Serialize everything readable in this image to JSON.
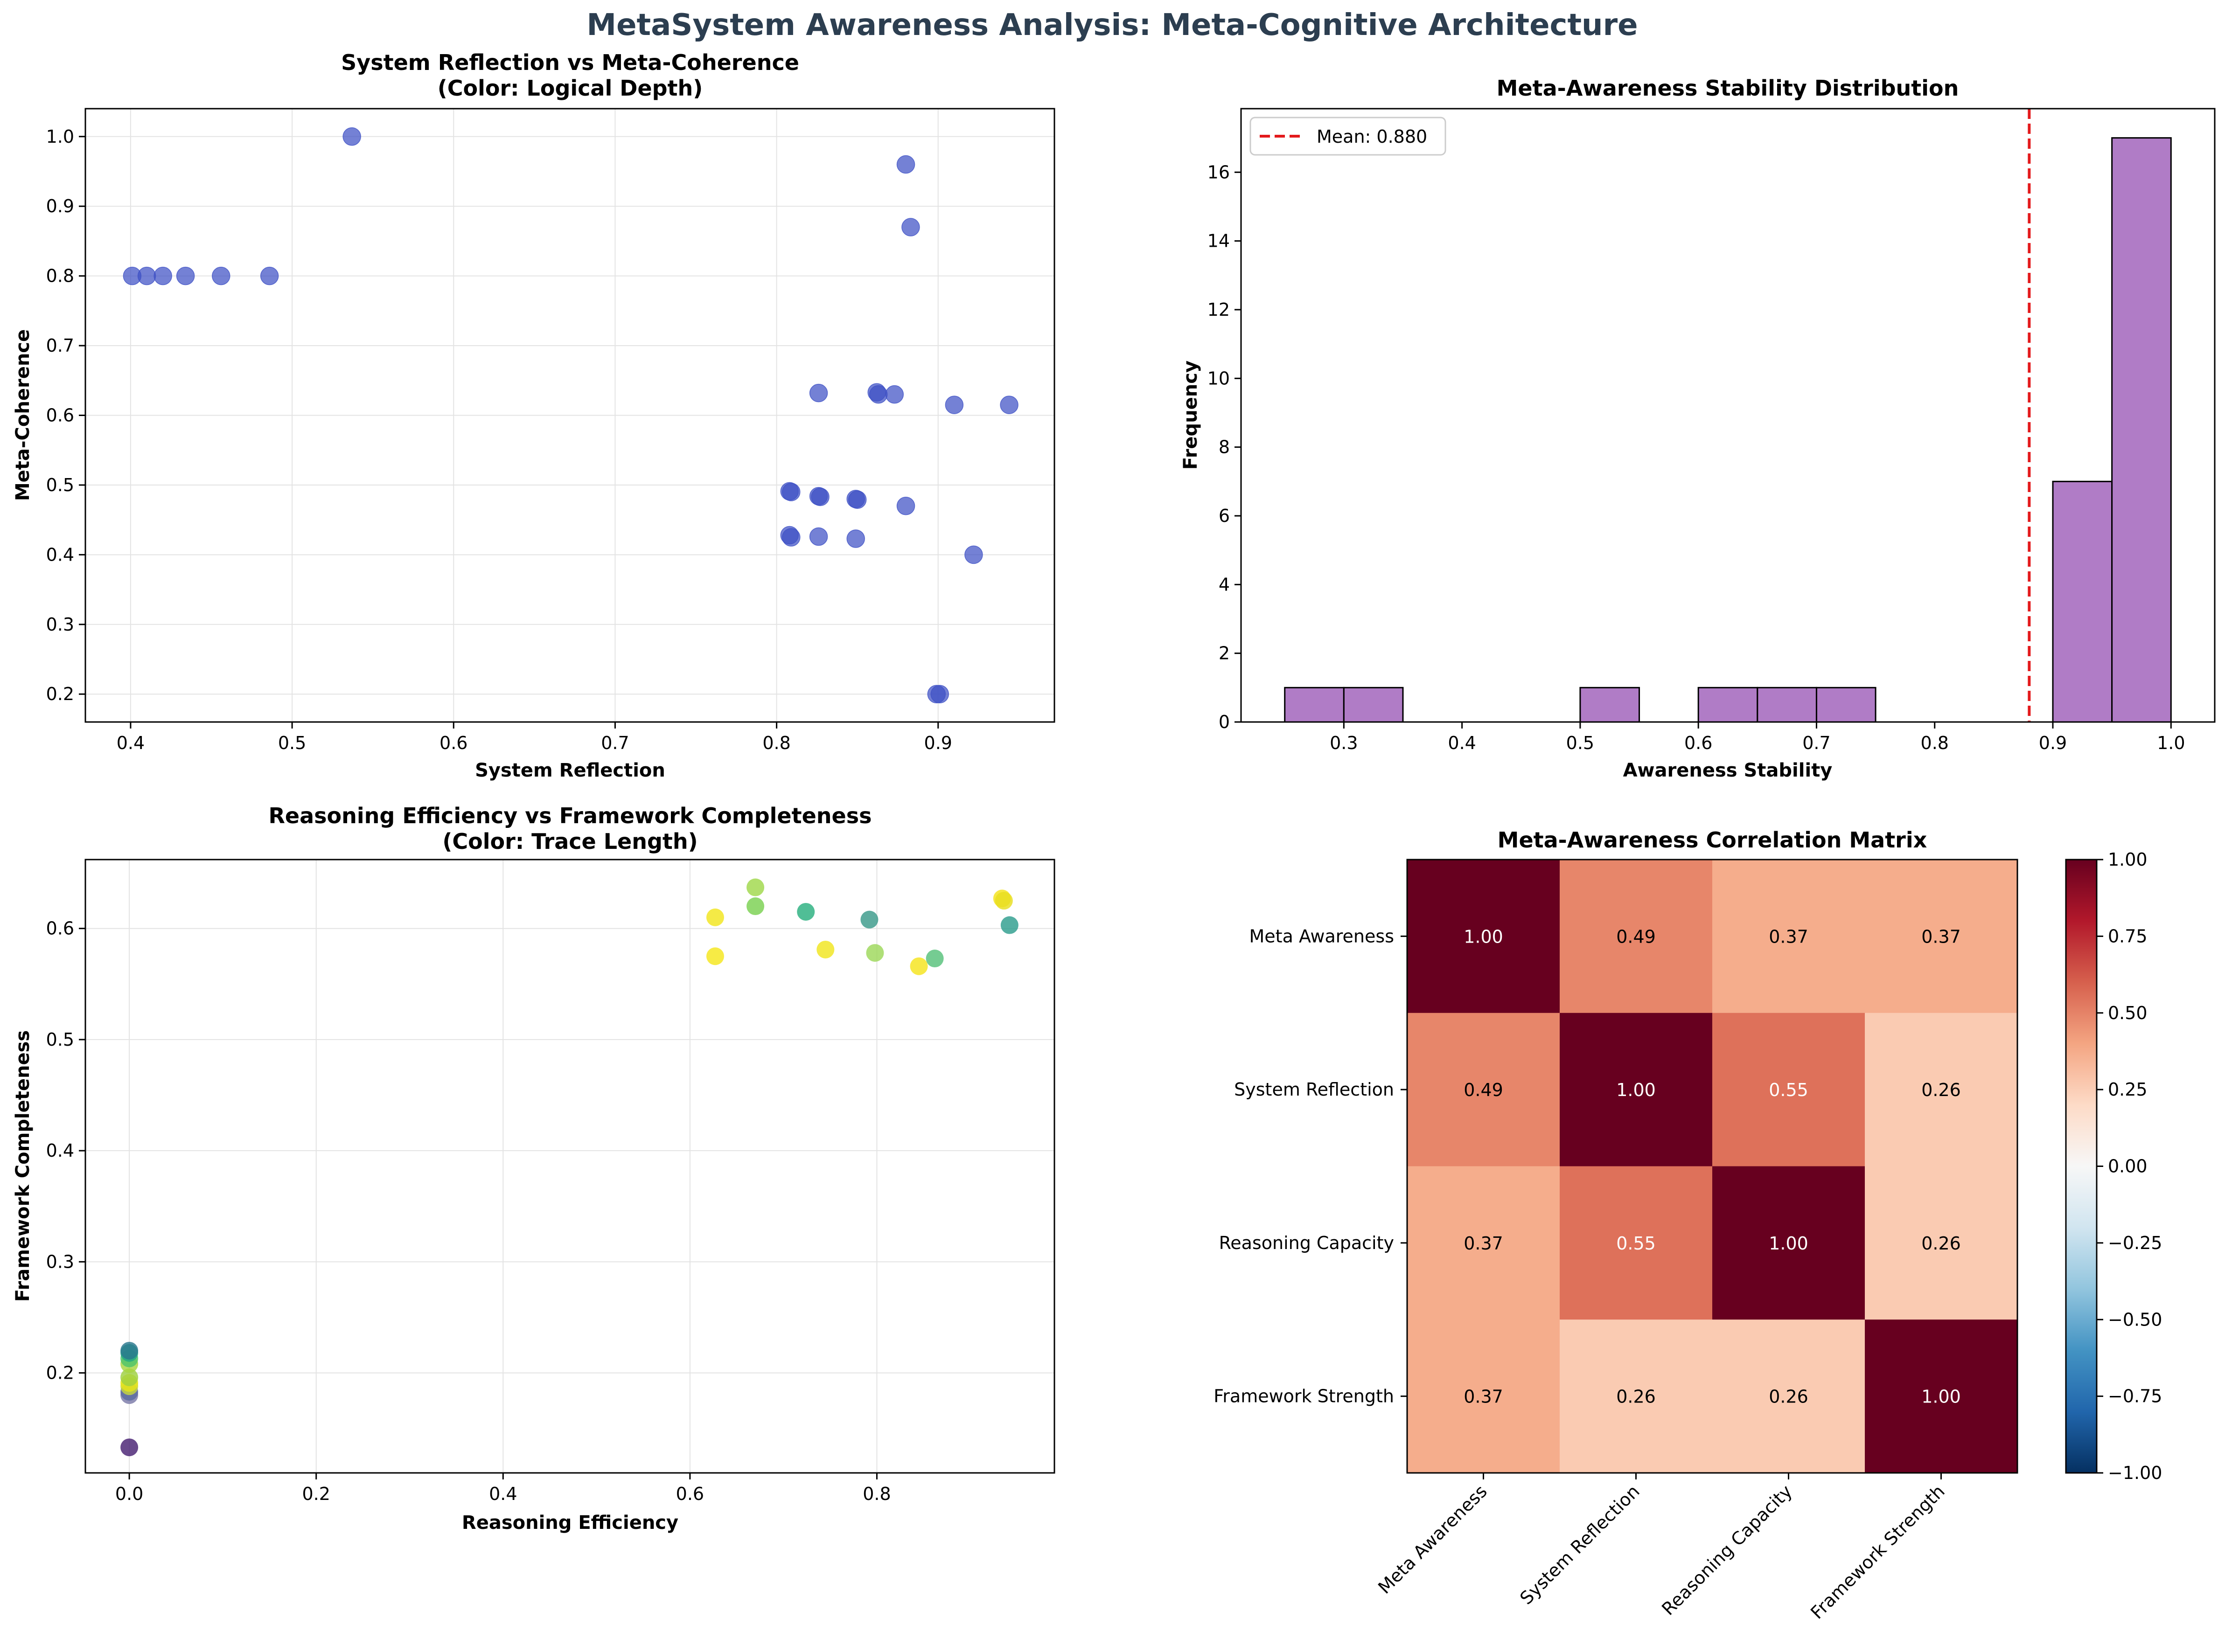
{
  "figure": {
    "suptitle": "MetaSystem Awareness Analysis: Meta-Cognitive Architecture",
    "suptitle_color": "#2c3e50"
  },
  "chart_data": [
    {
      "id": "scatter1",
      "type": "scatter",
      "title_line1": "System Reflection vs Meta-Coherence",
      "title_line2": "(Color: Logical Depth)",
      "xlabel": "System Reflection",
      "ylabel": "Meta-Coherence",
      "xlim": [
        0.372,
        0.972
      ],
      "ylim": [
        0.16,
        1.04
      ],
      "xticks": [
        0.4,
        0.5,
        0.6,
        0.7,
        0.8,
        0.9
      ],
      "yticks": [
        0.2,
        0.3,
        0.4,
        0.5,
        0.6,
        0.7,
        0.8,
        0.9,
        1.0
      ],
      "grid": true,
      "point_color": "#3f51c5",
      "points": [
        {
          "x": 0.401,
          "y": 0.8
        },
        {
          "x": 0.41,
          "y": 0.8
        },
        {
          "x": 0.42,
          "y": 0.8
        },
        {
          "x": 0.434,
          "y": 0.8
        },
        {
          "x": 0.456,
          "y": 0.8
        },
        {
          "x": 0.486,
          "y": 0.8
        },
        {
          "x": 0.537,
          "y": 1.0
        },
        {
          "x": 0.88,
          "y": 0.96
        },
        {
          "x": 0.883,
          "y": 0.87
        },
        {
          "x": 0.826,
          "y": 0.632
        },
        {
          "x": 0.862,
          "y": 0.633
        },
        {
          "x": 0.863,
          "y": 0.63
        },
        {
          "x": 0.873,
          "y": 0.63
        },
        {
          "x": 0.91,
          "y": 0.615
        },
        {
          "x": 0.944,
          "y": 0.615
        },
        {
          "x": 0.808,
          "y": 0.491
        },
        {
          "x": 0.809,
          "y": 0.49
        },
        {
          "x": 0.826,
          "y": 0.484
        },
        {
          "x": 0.827,
          "y": 0.483
        },
        {
          "x": 0.849,
          "y": 0.48
        },
        {
          "x": 0.85,
          "y": 0.479
        },
        {
          "x": 0.88,
          "y": 0.47
        },
        {
          "x": 0.808,
          "y": 0.428
        },
        {
          "x": 0.809,
          "y": 0.425
        },
        {
          "x": 0.826,
          "y": 0.426
        },
        {
          "x": 0.849,
          "y": 0.423
        },
        {
          "x": 0.922,
          "y": 0.4
        },
        {
          "x": 0.899,
          "y": 0.2
        },
        {
          "x": 0.901,
          "y": 0.2
        }
      ]
    },
    {
      "id": "hist1",
      "type": "bar",
      "title": "Meta-Awareness Stability Distribution",
      "xlabel": "Awareness Stability",
      "ylabel": "Frequency",
      "xlim": [
        0.213,
        1.037
      ],
      "ylim": [
        0,
        17.85
      ],
      "xticks": [
        0.3,
        0.4,
        0.5,
        0.6,
        0.7,
        0.8,
        0.9,
        1.0
      ],
      "yticks": [
        0,
        2,
        4,
        6,
        8,
        10,
        12,
        14,
        16
      ],
      "bar_color": "#b07cc6",
      "bin_width": 0.05,
      "bins": [
        {
          "start": 0.25,
          "count": 1
        },
        {
          "start": 0.3,
          "count": 1
        },
        {
          "start": 0.5,
          "count": 1
        },
        {
          "start": 0.6,
          "count": 1
        },
        {
          "start": 0.65,
          "count": 1
        },
        {
          "start": 0.7,
          "count": 1
        },
        {
          "start": 0.9,
          "count": 7
        },
        {
          "start": 0.95,
          "count": 17
        }
      ],
      "mean": 0.88,
      "mean_color": "#e31a1c",
      "legend_label": "Mean: 0.880",
      "legend_position": "top-left"
    },
    {
      "id": "scatter2",
      "type": "scatter",
      "title_line1": "Reasoning Efficiency vs Framework Completeness",
      "title_line2": "(Color: Trace Length)",
      "xlabel": "Reasoning Efficiency",
      "ylabel": "Framework Completeness",
      "xlim": [
        -0.047,
        0.99
      ],
      "ylim": [
        0.11,
        0.662
      ],
      "xticks": [
        0.0,
        0.2,
        0.4,
        0.6,
        0.8
      ],
      "yticks": [
        0.2,
        0.3,
        0.4,
        0.5,
        0.6
      ],
      "grid": true,
      "points": [
        {
          "x": 0.0,
          "y": 0.133,
          "c": "#482173"
        },
        {
          "x": 0.0,
          "y": 0.18,
          "c": "#7b7aa8"
        },
        {
          "x": 0.0,
          "y": 0.183,
          "c": "#5c6ba0"
        },
        {
          "x": 0.0,
          "y": 0.188,
          "c": "#c8d83a"
        },
        {
          "x": 0.0,
          "y": 0.191,
          "c": "#e5e419"
        },
        {
          "x": 0.0,
          "y": 0.196,
          "c": "#9fd142"
        },
        {
          "x": 0.0,
          "y": 0.208,
          "c": "#a7d63f"
        },
        {
          "x": 0.0,
          "y": 0.213,
          "c": "#4dc36b"
        },
        {
          "x": 0.0,
          "y": 0.218,
          "c": "#22a884"
        },
        {
          "x": 0.0,
          "y": 0.22,
          "c": "#2a788e"
        },
        {
          "x": 0.627,
          "y": 0.61,
          "c": "#f2e51d"
        },
        {
          "x": 0.627,
          "y": 0.575,
          "c": "#f5e61c"
        },
        {
          "x": 0.67,
          "y": 0.637,
          "c": "#a0d84a"
        },
        {
          "x": 0.67,
          "y": 0.62,
          "c": "#7ad151"
        },
        {
          "x": 0.724,
          "y": 0.615,
          "c": "#2ab07f"
        },
        {
          "x": 0.745,
          "y": 0.581,
          "c": "#f0e51e"
        },
        {
          "x": 0.792,
          "y": 0.608,
          "c": "#3a9a8a"
        },
        {
          "x": 0.798,
          "y": 0.578,
          "c": "#9ed85a"
        },
        {
          "x": 0.845,
          "y": 0.566,
          "c": "#f5e41c"
        },
        {
          "x": 0.862,
          "y": 0.573,
          "c": "#57c17a"
        },
        {
          "x": 0.934,
          "y": 0.627,
          "c": "#f4e31c"
        },
        {
          "x": 0.936,
          "y": 0.625,
          "c": "#e8de20"
        },
        {
          "x": 0.942,
          "y": 0.603,
          "c": "#2e9d8d"
        }
      ]
    },
    {
      "id": "heatmap1",
      "type": "heatmap",
      "title": "Meta-Awareness Correlation Matrix",
      "labels": [
        "Meta Awareness",
        "System Reflection",
        "Reasoning Capacity",
        "Framework Strength"
      ],
      "matrix": [
        [
          1.0,
          0.49,
          0.37,
          0.37
        ],
        [
          0.49,
          1.0,
          0.55,
          0.26
        ],
        [
          0.37,
          0.55,
          1.0,
          0.26
        ],
        [
          0.37,
          0.26,
          0.26,
          1.0
        ]
      ],
      "vmin": -1.0,
      "vmax": 1.0,
      "colorbar_ticks": [
        1.0,
        0.75,
        0.5,
        0.25,
        0.0,
        -0.25,
        -0.5,
        -0.75,
        -1.0
      ],
      "colorbar_tick_labels": [
        "1.00",
        "0.75",
        "0.50",
        "0.25",
        "0.00",
        "−0.25",
        "−0.50",
        "−0.75",
        "−1.00"
      ]
    }
  ]
}
